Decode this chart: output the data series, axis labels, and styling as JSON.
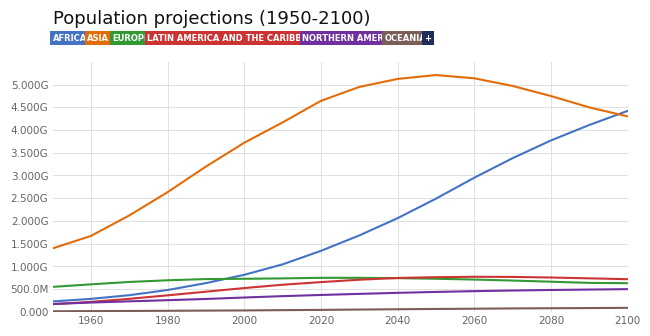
{
  "title": "Population projections (1950-2100)",
  "years": [
    1950,
    1960,
    1970,
    1980,
    1990,
    2000,
    2010,
    2020,
    2030,
    2040,
    2050,
    2060,
    2070,
    2080,
    2090,
    2100
  ],
  "regions": [
    {
      "name": "AFRICA",
      "color": "#4472C4",
      "bg_color": "#4472C4",
      "values": [
        0.229,
        0.285,
        0.366,
        0.48,
        0.632,
        0.814,
        1.044,
        1.341,
        1.68,
        2.06,
        2.489,
        2.95,
        3.38,
        3.77,
        4.11,
        4.42
      ]
    },
    {
      "name": "ASIA",
      "color": "#E36C09",
      "bg_color": "#E36C09",
      "values": [
        1.395,
        1.669,
        2.12,
        2.632,
        3.195,
        3.72,
        4.166,
        4.641,
        4.947,
        5.124,
        5.209,
        5.138,
        4.97,
        4.748,
        4.498,
        4.3
      ]
    },
    {
      "name": "EUROPE",
      "color": "#339933",
      "bg_color": "#339933",
      "values": [
        0.549,
        0.605,
        0.657,
        0.694,
        0.721,
        0.727,
        0.736,
        0.748,
        0.748,
        0.741,
        0.728,
        0.71,
        0.688,
        0.663,
        0.637,
        0.63
      ]
    },
    {
      "name": "LATIN AMERICA AND THE CARIBBEAN",
      "color": "#CC3333",
      "bg_color": "#CC3333",
      "values": [
        0.168,
        0.219,
        0.286,
        0.363,
        0.443,
        0.523,
        0.596,
        0.654,
        0.706,
        0.745,
        0.762,
        0.771,
        0.768,
        0.755,
        0.737,
        0.718
      ]
    },
    {
      "name": "NORTHERN AMERICA",
      "color": "#7030A0",
      "bg_color": "#7030A0",
      "values": [
        0.172,
        0.204,
        0.231,
        0.256,
        0.283,
        0.315,
        0.345,
        0.371,
        0.395,
        0.418,
        0.438,
        0.455,
        0.469,
        0.481,
        0.49,
        0.499
      ]
    },
    {
      "name": "OCEANIA",
      "color": "#7B5E57",
      "bg_color": "#7B5E57",
      "values": [
        0.013,
        0.016,
        0.019,
        0.023,
        0.027,
        0.031,
        0.037,
        0.043,
        0.05,
        0.057,
        0.063,
        0.069,
        0.075,
        0.079,
        0.083,
        0.088
      ]
    }
  ],
  "plus_color": "#1F2D5A",
  "ylim": [
    0,
    5.5
  ],
  "yticks": [
    0.0,
    0.5,
    1.0,
    1.5,
    2.0,
    2.5,
    3.0,
    3.5,
    4.0,
    4.5,
    5.0
  ],
  "ytick_labels": [
    "0.000",
    "500.0M",
    "1.000G",
    "1.500G",
    "2.000G",
    "2.500G",
    "3.000G",
    "3.500G",
    "4.000G",
    "4.500G",
    "5.000G"
  ],
  "xticks": [
    1960,
    1980,
    2000,
    2020,
    2040,
    2060,
    2080,
    2100
  ],
  "background_color": "#ffffff",
  "grid_color": "#e0e0e0",
  "title_fontsize": 13,
  "axis_fontsize": 7.5,
  "legend_fontsize": 6.0
}
